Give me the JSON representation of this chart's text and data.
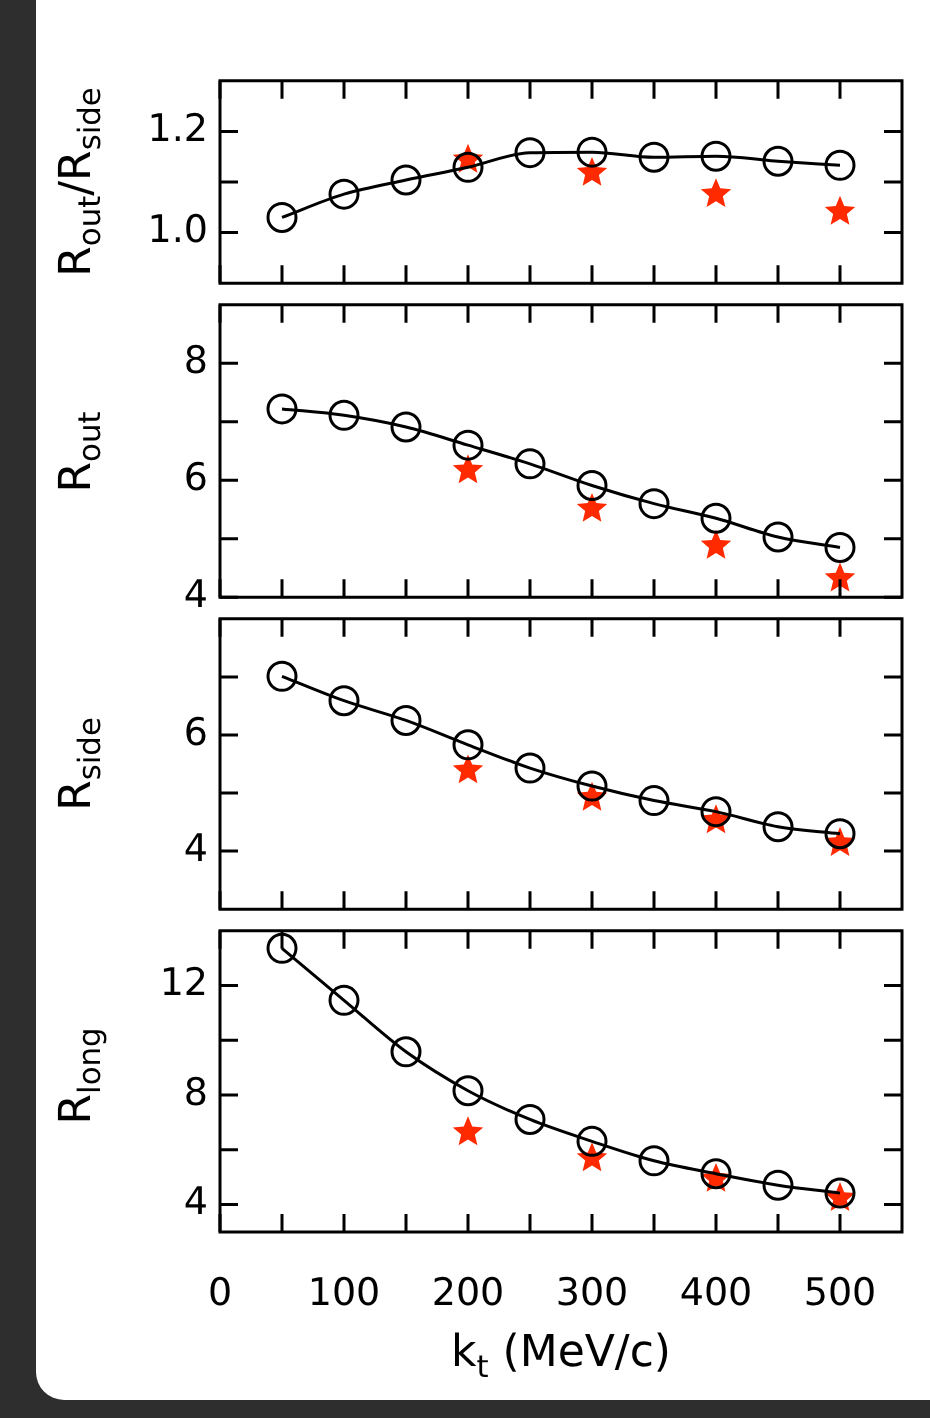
{
  "chart_data": [
    {
      "type": "line",
      "ylabel": "R$_{out}$/R$_{side}$",
      "xlim": [
        0,
        550
      ],
      "xticks": [
        0,
        {
          "value": 50,
          "label": null
        },
        100,
        {
          "value": 150,
          "label": null
        },
        200,
        {
          "value": 250,
          "label": null
        },
        300,
        {
          "value": 350,
          "label": null
        },
        400,
        {
          "value": 450,
          "label": null
        },
        500
      ],
      "ylim": [
        0.9,
        1.3
      ],
      "yticks": [
        {
          "value": 1,
          "label": "1.0"
        },
        {
          "value": 1.1,
          "label": null
        },
        1.2
      ],
      "tick_labels": "y",
      "series": [
        {
          "type": "line",
          "color": "#000000",
          "marker": "circle",
          "x": [
            50,
            100,
            150,
            200,
            250,
            300,
            350,
            400,
            450,
            500
          ],
          "values": [
            1.03,
            1.076,
            1.104,
            1.129,
            1.158,
            1.159,
            1.149,
            1.151,
            1.141,
            1.133
          ]
        },
        {
          "type": "scatter",
          "color": "#ff2a00",
          "marker": "star",
          "x": [
            200,
            300,
            400,
            500
          ],
          "values": [
            1.144,
            1.118,
            1.076,
            1.041
          ]
        }
      ]
    },
    {
      "type": "line",
      "ylabel": "R$_{out}$",
      "xlim": [
        0,
        550
      ],
      "xticks": [
        0,
        {
          "value": 50,
          "label": null
        },
        100,
        {
          "value": 150,
          "label": null
        },
        200,
        {
          "value": 250,
          "label": null
        },
        300,
        {
          "value": 350,
          "label": null
        },
        400,
        {
          "value": 450,
          "label": null
        },
        500
      ],
      "ylim": [
        4,
        9
      ],
      "yticks": [
        4,
        {
          "value": 5,
          "label": null
        },
        6,
        {
          "value": 7,
          "label": null
        },
        8
      ],
      "tick_labels": "y",
      "series": [
        {
          "type": "line",
          "color": "#000000",
          "marker": "circle",
          "x": [
            50,
            100,
            150,
            200,
            250,
            300,
            350,
            400,
            450,
            500
          ],
          "values": [
            7.22,
            7.11,
            6.91,
            6.6,
            6.28,
            5.91,
            5.6,
            5.35,
            5.03,
            4.85
          ]
        },
        {
          "type": "scatter",
          "color": "#ff2a00",
          "marker": "star",
          "x": [
            200,
            300,
            400,
            500
          ],
          "values": [
            6.17,
            5.51,
            4.88,
            4.32
          ]
        }
      ]
    },
    {
      "type": "line",
      "ylabel": "R$_{side}$",
      "xlim": [
        0,
        550
      ],
      "xticks": [
        0,
        {
          "value": 50,
          "label": null
        },
        100,
        {
          "value": 150,
          "label": null
        },
        200,
        {
          "value": 250,
          "label": null
        },
        300,
        {
          "value": 350,
          "label": null
        },
        400,
        {
          "value": 450,
          "label": null
        },
        500
      ],
      "ylim": [
        3,
        8
      ],
      "yticks": [
        4,
        {
          "value": 5,
          "label": null
        },
        6,
        {
          "value": 7,
          "label": null
        }
      ],
      "tick_labels": "y",
      "series": [
        {
          "type": "line",
          "color": "#000000",
          "marker": "circle",
          "x": [
            50,
            100,
            150,
            200,
            250,
            300,
            350,
            400,
            450,
            500
          ],
          "values": [
            7.01,
            6.59,
            6.25,
            5.83,
            5.43,
            5.12,
            4.87,
            4.68,
            4.42,
            4.3
          ]
        },
        {
          "type": "scatter",
          "color": "#ff2a00",
          "marker": "star",
          "x": [
            200,
            300,
            400,
            500
          ],
          "values": [
            5.39,
            4.92,
            4.53,
            4.14
          ]
        }
      ]
    },
    {
      "type": "line",
      "ylabel": "R$_{long}$",
      "xlabel": "k$_{t}$  (MeV/c)",
      "xlim": [
        0,
        550
      ],
      "xticks": [
        0,
        {
          "value": 50,
          "label": null
        },
        100,
        {
          "value": 150,
          "label": null
        },
        200,
        {
          "value": 250,
          "label": null
        },
        300,
        {
          "value": 350,
          "label": null
        },
        400,
        {
          "value": 450,
          "label": null
        },
        500
      ],
      "ylim": [
        3,
        14
      ],
      "yticks": [
        4,
        {
          "value": 6,
          "label": null
        },
        8,
        {
          "value": 10,
          "label": null
        },
        12
      ],
      "series": [
        {
          "type": "line",
          "color": "#000000",
          "marker": "circle",
          "x": [
            50,
            100,
            150,
            200,
            250,
            300,
            350,
            400,
            450,
            500
          ],
          "values": [
            13.36,
            11.46,
            9.58,
            8.16,
            7.11,
            6.31,
            5.6,
            5.13,
            4.71,
            4.42
          ]
        },
        {
          "type": "scatter",
          "color": "#ff2a00",
          "marker": "star",
          "x": [
            200,
            300,
            400,
            500
          ],
          "values": [
            6.64,
            5.69,
            4.94,
            4.24
          ]
        }
      ]
    }
  ]
}
